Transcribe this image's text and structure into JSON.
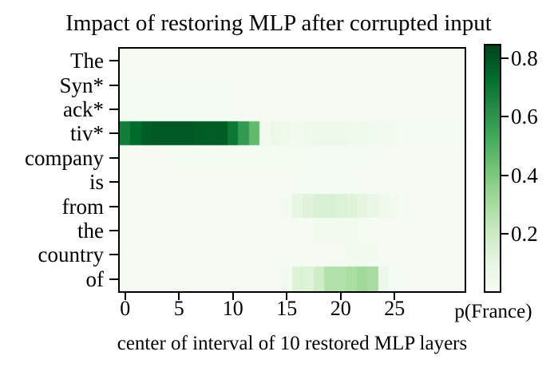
{
  "chart_data": {
    "type": "heatmap",
    "title": "Impact of restoring MLP after corrupted input",
    "xlabel": "center of interval of 10 restored MLP layers",
    "colorbar_label": "p(France)",
    "rows": [
      "The",
      "Syn*",
      "ack*",
      "tiv*",
      "company",
      "is",
      "from",
      "the",
      "country",
      "of"
    ],
    "n_cols": 32,
    "x_ticks": [
      0,
      5,
      10,
      15,
      20,
      25
    ],
    "colorbar_ticks": [
      0.2,
      0.4,
      0.6,
      0.8
    ],
    "vmin": 0.005,
    "vmax": 0.843,
    "colormap": "Greens",
    "colormap_stops": [
      "#f7fcf5",
      "#e5f5e0",
      "#c7e9c0",
      "#a1d99b",
      "#74c476",
      "#41ab5d",
      "#238b45",
      "#006d2c",
      "#00441b"
    ],
    "axis_color": "#000000",
    "background_color": "#ffffff",
    "grid": false,
    "legend_position": "colorbar-right",
    "values": [
      [
        0.015,
        0.015,
        0.015,
        0.015,
        0.015,
        0.015,
        0.015,
        0.015,
        0.015,
        0.015,
        0.015,
        0.015,
        0.015,
        0.015,
        0.015,
        0.015,
        0.015,
        0.015,
        0.015,
        0.015,
        0.015,
        0.015,
        0.015,
        0.015,
        0.015,
        0.015,
        0.015,
        0.015,
        0.015,
        0.015,
        0.015,
        0.015
      ],
      [
        0.02,
        0.02,
        0.02,
        0.02,
        0.02,
        0.02,
        0.02,
        0.02,
        0.02,
        0.02,
        0.015,
        0.015,
        0.015,
        0.015,
        0.015,
        0.015,
        0.015,
        0.015,
        0.015,
        0.015,
        0.015,
        0.015,
        0.015,
        0.015,
        0.015,
        0.015,
        0.015,
        0.015,
        0.015,
        0.015,
        0.015,
        0.015
      ],
      [
        0.02,
        0.02,
        0.02,
        0.02,
        0.02,
        0.02,
        0.02,
        0.02,
        0.02,
        0.02,
        0.02,
        0.015,
        0.015,
        0.015,
        0.015,
        0.015,
        0.015,
        0.015,
        0.015,
        0.015,
        0.015,
        0.015,
        0.015,
        0.015,
        0.015,
        0.015,
        0.015,
        0.015,
        0.015,
        0.015,
        0.015,
        0.015
      ],
      [
        0.68,
        0.74,
        0.78,
        0.79,
        0.79,
        0.79,
        0.79,
        0.78,
        0.78,
        0.78,
        0.7,
        0.58,
        0.46,
        0.03,
        0.07,
        0.05,
        0.03,
        0.05,
        0.06,
        0.06,
        0.06,
        0.05,
        0.05,
        0.04,
        0.03,
        0.03,
        0.02,
        0.02,
        0.02,
        0.02,
        0.02,
        0.02
      ],
      [
        0.015,
        0.015,
        0.015,
        0.015,
        0.025,
        0.025,
        0.025,
        0.025,
        0.025,
        0.025,
        0.025,
        0.025,
        0.025,
        0.025,
        0.025,
        0.025,
        0.025,
        0.02,
        0.02,
        0.02,
        0.02,
        0.02,
        0.02,
        0.015,
        0.015,
        0.015,
        0.015,
        0.015,
        0.015,
        0.015,
        0.015,
        0.015
      ],
      [
        0.015,
        0.015,
        0.015,
        0.015,
        0.015,
        0.015,
        0.015,
        0.015,
        0.015,
        0.015,
        0.015,
        0.015,
        0.015,
        0.015,
        0.015,
        0.015,
        0.015,
        0.02,
        0.02,
        0.02,
        0.02,
        0.02,
        0.015,
        0.015,
        0.015,
        0.015,
        0.015,
        0.015,
        0.015,
        0.015,
        0.015,
        0.015
      ],
      [
        0.015,
        0.015,
        0.015,
        0.015,
        0.015,
        0.015,
        0.015,
        0.015,
        0.015,
        0.015,
        0.015,
        0.015,
        0.015,
        0.015,
        0.015,
        0.03,
        0.1,
        0.13,
        0.15,
        0.15,
        0.14,
        0.13,
        0.11,
        0.08,
        0.05,
        0.03,
        0.02,
        0.015,
        0.015,
        0.015,
        0.015,
        0.015
      ],
      [
        0.015,
        0.015,
        0.015,
        0.015,
        0.015,
        0.015,
        0.015,
        0.015,
        0.015,
        0.015,
        0.015,
        0.015,
        0.015,
        0.015,
        0.015,
        0.015,
        0.015,
        0.015,
        0.03,
        0.03,
        0.03,
        0.03,
        0.025,
        0.015,
        0.015,
        0.015,
        0.015,
        0.015,
        0.015,
        0.015,
        0.015,
        0.015
      ],
      [
        0.015,
        0.015,
        0.015,
        0.015,
        0.015,
        0.015,
        0.015,
        0.015,
        0.015,
        0.015,
        0.015,
        0.015,
        0.015,
        0.015,
        0.015,
        0.015,
        0.015,
        0.015,
        0.015,
        0.015,
        0.015,
        0.03,
        0.03,
        0.03,
        0.015,
        0.015,
        0.015,
        0.015,
        0.015,
        0.015,
        0.015,
        0.015
      ],
      [
        0.015,
        0.015,
        0.015,
        0.015,
        0.015,
        0.015,
        0.015,
        0.015,
        0.015,
        0.015,
        0.015,
        0.015,
        0.015,
        0.015,
        0.015,
        0.03,
        0.14,
        0.13,
        0.19,
        0.27,
        0.27,
        0.29,
        0.32,
        0.3,
        0.06,
        0.02,
        0.015,
        0.015,
        0.015,
        0.015,
        0.015,
        0.015
      ]
    ]
  }
}
